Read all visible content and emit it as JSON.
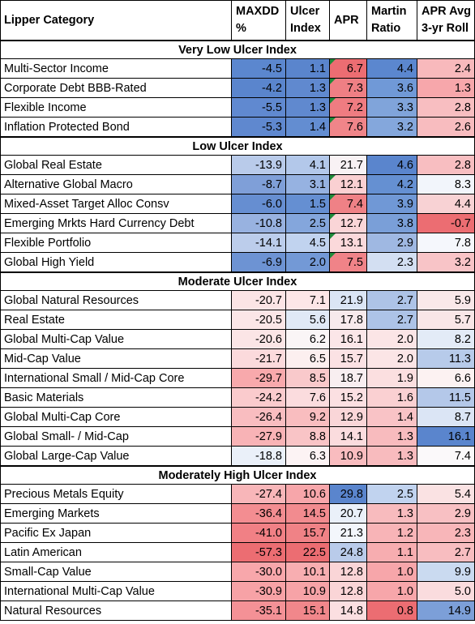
{
  "headers": [
    "Lipper Category",
    "MAXDD %",
    "Ulcer Index",
    "APR",
    "Martin Ratio",
    "APR Avg 3-yr Roll"
  ],
  "groups": [
    {
      "title": "Very Low Ulcer Index",
      "rows": [
        {
          "name": "Multi-Sector Income",
          "vals": [
            "-4.5",
            "1.1",
            "6.7",
            "4.4",
            "2.4"
          ],
          "colors": [
            "#5b87cf",
            "#5a85cd",
            "#ec6d72",
            "#5b87cf",
            "#f8b9bc"
          ],
          "flag": true
        },
        {
          "name": "Corporate Debt BBB-Rated",
          "vals": [
            "-4.2",
            "1.3",
            "7.3",
            "3.6",
            "1.3"
          ],
          "colors": [
            "#5a85cd",
            "#6089cf",
            "#ef7f84",
            "#7099d7",
            "#f7a7ab"
          ],
          "flag": true
        },
        {
          "name": "Flexible Income",
          "vals": [
            "-5.5",
            "1.3",
            "7.2",
            "3.3",
            "2.8"
          ],
          "colors": [
            "#6089d0",
            "#6089cf",
            "#ef7c81",
            "#80a4da",
            "#f8bec1"
          ],
          "flag": true
        },
        {
          "name": "Inflation Protected Bond",
          "vals": [
            "-5.3",
            "1.4",
            "7.6",
            "3.2",
            "2.6"
          ],
          "colors": [
            "#5f88cf",
            "#638dd1",
            "#f08589",
            "#84a7dc",
            "#f8bcbf"
          ],
          "flag": true
        }
      ]
    },
    {
      "title": "Low Ulcer Index",
      "rows": [
        {
          "name": "Global Real Estate",
          "vals": [
            "-13.9",
            "4.1",
            "21.7",
            "4.6",
            "2.8"
          ],
          "colors": [
            "#b9cbea",
            "#b3c8ea",
            "#f8f2f4",
            "#5a85cd",
            "#f8bec1"
          ],
          "flag": false
        },
        {
          "name": "Alternative Global Macro",
          "vals": [
            "-8.7",
            "3.1",
            "12.1",
            "4.2",
            "8.3"
          ],
          "colors": [
            "#7f9fd8",
            "#96b2e1",
            "#fad0d2",
            "#6590d2",
            "#f2f5fb"
          ],
          "flag": true
        },
        {
          "name": "Mixed-Asset Target Alloc Consv",
          "vals": [
            "-6.0",
            "1.5",
            "7.4",
            "3.9",
            "4.4"
          ],
          "colors": [
            "#668ed1",
            "#658fd2",
            "#ef8186",
            "#7098d6",
            "#f8d2d4"
          ],
          "flag": true
        },
        {
          "name": "Emerging Mrkts Hard Currency Debt",
          "vals": [
            "-10.8",
            "2.5",
            "12.7",
            "3.8",
            "-0.7"
          ],
          "colors": [
            "#98b2e0",
            "#84a6dc",
            "#fad5d7",
            "#7a9fd8",
            "#ec6d72"
          ],
          "flag": true
        },
        {
          "name": "Flexible Portfolio",
          "vals": [
            "-14.1",
            "4.5",
            "13.1",
            "2.9",
            "7.8"
          ],
          "colors": [
            "#bccdeb",
            "#c1d3ef",
            "#fbd9db",
            "#9fb8e2",
            "#f5f7fc"
          ],
          "flag": true
        },
        {
          "name": "Global High Yield",
          "vals": [
            "-6.9",
            "2.0",
            "7.5",
            "2.3",
            "3.2"
          ],
          "colors": [
            "#6d93d3",
            "#7399d6",
            "#f08388",
            "#d3dff2",
            "#f8c4c7"
          ],
          "flag": true
        }
      ]
    },
    {
      "title": "Moderate Ulcer Index",
      "rows": [
        {
          "name": "Global Natural Resources",
          "vals": [
            "-20.7",
            "7.1",
            "21.9",
            "2.7",
            "5.9"
          ],
          "colors": [
            "#fbe4e5",
            "#fce6e7",
            "#dbe5f5",
            "#adc3e7",
            "#f9e8e9"
          ],
          "flag": false
        },
        {
          "name": "Real Estate",
          "vals": [
            "-20.5",
            "5.6",
            "17.8",
            "2.7",
            "5.7"
          ],
          "colors": [
            "#fbe6e7",
            "#e0e9f6",
            "#f7eaec",
            "#adc3e7",
            "#f9e6e7"
          ],
          "flag": false
        },
        {
          "name": "Global Multi-Cap Value",
          "vals": [
            "-20.6",
            "6.2",
            "16.1",
            "2.0",
            "8.2"
          ],
          "colors": [
            "#fbe5e6",
            "#faf5f6",
            "#fbe6e8",
            "#fbe5e6",
            "#e3ebf7"
          ],
          "flag": false
        },
        {
          "name": "Mid-Cap Value",
          "vals": [
            "-21.7",
            "6.5",
            "15.7",
            "2.0",
            "11.3"
          ],
          "colors": [
            "#fbdadc",
            "#fcefef",
            "#fbe2e4",
            "#fbe5e6",
            "#b7cbea"
          ],
          "flag": false
        },
        {
          "name": "International Small / Mid-Cap Core",
          "vals": [
            "-29.7",
            "8.5",
            "18.7",
            "1.9",
            "6.6"
          ],
          "colors": [
            "#f8a9ac",
            "#f9c9cb",
            "#f8eef0",
            "#fbdfe0",
            "#fcf2f2"
          ],
          "flag": false
        },
        {
          "name": "Basic Materials",
          "vals": [
            "-24.2",
            "7.6",
            "15.2",
            "1.6",
            "11.5"
          ],
          "colors": [
            "#facbcd",
            "#fbdcde",
            "#fbe0e2",
            "#fad0d2",
            "#b4c8e9"
          ],
          "flag": false
        },
        {
          "name": "Global Multi-Cap Core",
          "vals": [
            "-26.4",
            "9.2",
            "12.9",
            "1.4",
            "8.7"
          ],
          "colors": [
            "#f9bdc0",
            "#f9bdbf",
            "#fad6d8",
            "#f9c3c6",
            "#dbe5f5"
          ],
          "flag": false
        },
        {
          "name": "Global Small- / Mid-Cap",
          "vals": [
            "-27.9",
            "8.8",
            "14.1",
            "1.3",
            "16.1"
          ],
          "colors": [
            "#f8b3b6",
            "#f9c4c6",
            "#fbdcde",
            "#f8bbbe",
            "#5a85cd"
          ],
          "flag": false
        },
        {
          "name": "Global Large-Cap Value",
          "vals": [
            "-18.8",
            "6.3",
            "10.9",
            "1.3",
            "7.4"
          ],
          "colors": [
            "#eaf0f9",
            "#fcf3f4",
            "#f9bcbf",
            "#f8bbbe",
            "#fbf9fa"
          ],
          "flag": false
        }
      ]
    },
    {
      "title": "Moderately High Ulcer Index",
      "rows": [
        {
          "name": "Precious Metals Equity",
          "vals": [
            "-27.4",
            "10.6",
            "29.8",
            "2.5",
            "5.4"
          ],
          "colors": [
            "#f8b6b9",
            "#f7a6aa",
            "#5a85cd",
            "#c1d3ef",
            "#fae2e3"
          ],
          "flag": false
        },
        {
          "name": "Emerging Markets",
          "vals": [
            "-36.4",
            "14.5",
            "20.7",
            "1.3",
            "2.9"
          ],
          "colors": [
            "#f38d91",
            "#f28b8f",
            "#eaf0f9",
            "#f8bbbe",
            "#f8c0c3"
          ],
          "flag": false
        },
        {
          "name": "Pacific Ex Japan",
          "vals": [
            "-41.0",
            "15.7",
            "21.3",
            "1.2",
            "2.3"
          ],
          "colors": [
            "#f18085",
            "#f08286",
            "#f3f6fb",
            "#f8b4b7",
            "#f8b6b9"
          ],
          "flag": false
        },
        {
          "name": "Latin American",
          "vals": [
            "-57.3",
            "22.5",
            "24.8",
            "1.1",
            "2.7"
          ],
          "colors": [
            "#ec6d72",
            "#ec6d72",
            "#b9cbea",
            "#f7adb0",
            "#f8bdc0"
          ],
          "flag": false
        },
        {
          "name": "Small-Cap Value",
          "vals": [
            "-30.0",
            "10.1",
            "12.8",
            "1.0",
            "9.9"
          ],
          "colors": [
            "#f8a7ab",
            "#f8aeb1",
            "#fad5d7",
            "#f7a6aa",
            "#cadaf0"
          ],
          "flag": false
        },
        {
          "name": "International Multi-Cap Value",
          "vals": [
            "-30.9",
            "10.9",
            "12.8",
            "1.0",
            "5.0"
          ],
          "colors": [
            "#f7a2a6",
            "#f7a3a7",
            "#fad5d7",
            "#f7a6aa",
            "#fadcde"
          ],
          "flag": false
        },
        {
          "name": "Natural Resources",
          "vals": [
            "-35.1",
            "15.1",
            "14.8",
            "0.8",
            "14.9"
          ],
          "colors": [
            "#f49196",
            "#f1878b",
            "#fbdfe1",
            "#ec6d72",
            "#7c9fd8"
          ],
          "flag": false
        }
      ]
    }
  ]
}
